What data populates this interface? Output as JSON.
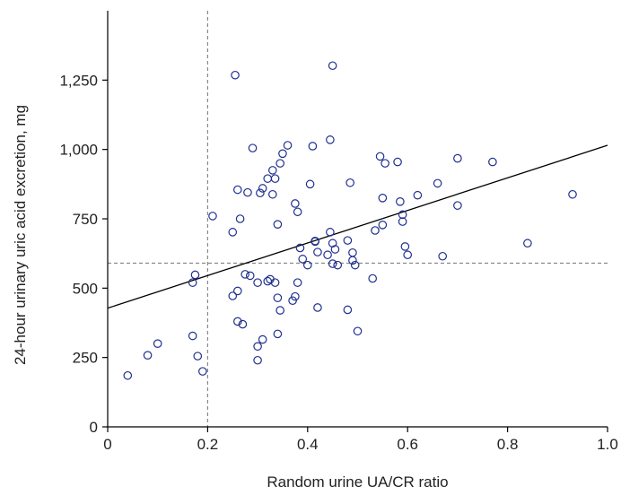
{
  "chart_data": {
    "type": "scatter",
    "title": "",
    "xlabel": "Random urine UA/CR ratio",
    "ylabel": "24-hour urinary uric acid excretion, mg",
    "xlim": [
      0,
      1.0
    ],
    "ylim": [
      0,
      1500
    ],
    "xticks": [
      0,
      0.2,
      0.4,
      0.6,
      0.8,
      1.0
    ],
    "xtick_labels": [
      "0",
      "0.2",
      "0.4",
      "0.6",
      "0.8",
      "1.0"
    ],
    "yticks": [
      0,
      250,
      500,
      750,
      1000,
      1250
    ],
    "ytick_labels": [
      "0",
      "250",
      "500",
      "750",
      "1,000",
      "1,250"
    ],
    "grid": false,
    "reference_lines": {
      "x": 0.2,
      "y": 590
    },
    "regression_line": {
      "x": [
        0,
        1.0
      ],
      "y": [
        428,
        1015
      ]
    },
    "marker_color": "#1f2f8f",
    "points": [
      [
        0.04,
        185
      ],
      [
        0.08,
        258
      ],
      [
        0.1,
        300
      ],
      [
        0.17,
        328
      ],
      [
        0.17,
        520
      ],
      [
        0.175,
        548
      ],
      [
        0.18,
        255
      ],
      [
        0.19,
        200
      ],
      [
        0.21,
        760
      ],
      [
        0.25,
        472
      ],
      [
        0.25,
        702
      ],
      [
        0.255,
        1268
      ],
      [
        0.26,
        380
      ],
      [
        0.26,
        490
      ],
      [
        0.26,
        855
      ],
      [
        0.265,
        750
      ],
      [
        0.27,
        370
      ],
      [
        0.275,
        550
      ],
      [
        0.28,
        845
      ],
      [
        0.285,
        545
      ],
      [
        0.29,
        1005
      ],
      [
        0.3,
        520
      ],
      [
        0.3,
        290
      ],
      [
        0.3,
        240
      ],
      [
        0.305,
        843
      ],
      [
        0.31,
        315
      ],
      [
        0.31,
        860
      ],
      [
        0.32,
        895
      ],
      [
        0.32,
        525
      ],
      [
        0.325,
        532
      ],
      [
        0.33,
        838
      ],
      [
        0.33,
        925
      ],
      [
        0.335,
        520
      ],
      [
        0.335,
        895
      ],
      [
        0.34,
        335
      ],
      [
        0.34,
        465
      ],
      [
        0.34,
        730
      ],
      [
        0.345,
        420
      ],
      [
        0.345,
        950
      ],
      [
        0.35,
        985
      ],
      [
        0.36,
        1015
      ],
      [
        0.37,
        455
      ],
      [
        0.375,
        805
      ],
      [
        0.375,
        470
      ],
      [
        0.38,
        520
      ],
      [
        0.38,
        775
      ],
      [
        0.385,
        645
      ],
      [
        0.39,
        605
      ],
      [
        0.4,
        583
      ],
      [
        0.405,
        875
      ],
      [
        0.41,
        1012
      ],
      [
        0.415,
        670
      ],
      [
        0.415,
        668
      ],
      [
        0.42,
        630
      ],
      [
        0.42,
        430
      ],
      [
        0.44,
        620
      ],
      [
        0.445,
        1035
      ],
      [
        0.445,
        702
      ],
      [
        0.45,
        1302
      ],
      [
        0.45,
        588
      ],
      [
        0.45,
        662
      ],
      [
        0.455,
        640
      ],
      [
        0.46,
        583
      ],
      [
        0.48,
        672
      ],
      [
        0.48,
        422
      ],
      [
        0.485,
        880
      ],
      [
        0.49,
        628
      ],
      [
        0.49,
        600
      ],
      [
        0.495,
        583
      ],
      [
        0.5,
        345
      ],
      [
        0.53,
        535
      ],
      [
        0.535,
        708
      ],
      [
        0.545,
        975
      ],
      [
        0.55,
        825
      ],
      [
        0.55,
        728
      ],
      [
        0.555,
        950
      ],
      [
        0.58,
        955
      ],
      [
        0.585,
        812
      ],
      [
        0.59,
        765
      ],
      [
        0.59,
        740
      ],
      [
        0.595,
        650
      ],
      [
        0.6,
        620
      ],
      [
        0.62,
        835
      ],
      [
        0.66,
        878
      ],
      [
        0.67,
        615
      ],
      [
        0.7,
        968
      ],
      [
        0.7,
        798
      ],
      [
        0.77,
        955
      ],
      [
        0.84,
        662
      ],
      [
        0.93,
        838
      ]
    ]
  }
}
